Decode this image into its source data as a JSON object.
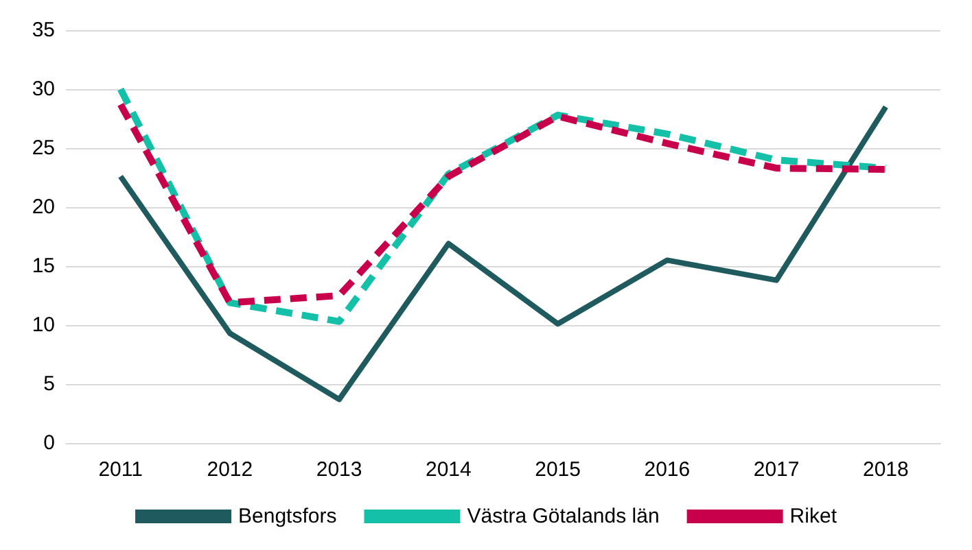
{
  "chart_data": {
    "type": "line",
    "categories": [
      "2011",
      "2012",
      "2013",
      "2014",
      "2015",
      "2016",
      "2017",
      "2018"
    ],
    "series": [
      {
        "name": "Bengtsfors",
        "color": "#1f5a5f",
        "line_style": "solid",
        "values": [
          22.6,
          9.3,
          3.7,
          16.9,
          10.1,
          15.5,
          13.8,
          28.5
        ]
      },
      {
        "name": "Västra Götalands län",
        "color": "#14c1a8",
        "line_style": "dashed",
        "values": [
          30.0,
          11.9,
          10.3,
          22.8,
          27.8,
          26.2,
          24.0,
          23.3
        ]
      },
      {
        "name": "Riket",
        "color": "#c8004b",
        "line_style": "dashed",
        "values": [
          28.7,
          11.9,
          12.5,
          22.6,
          27.7,
          25.4,
          23.3,
          23.2
        ]
      }
    ],
    "ylim": [
      0,
      35
    ],
    "yticks": [
      0,
      5,
      10,
      15,
      20,
      25,
      30,
      35
    ],
    "grid": "y",
    "legend": "bottom",
    "marker": "none"
  }
}
